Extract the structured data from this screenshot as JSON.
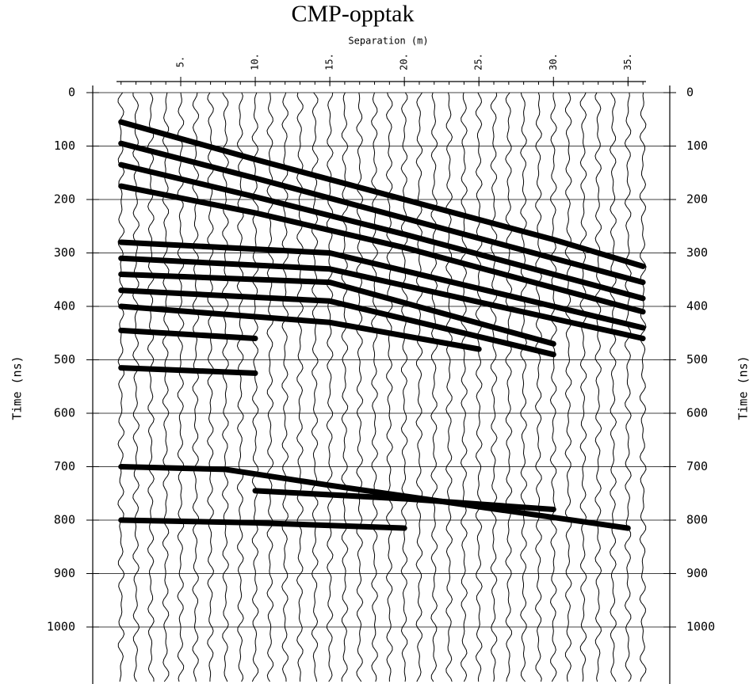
{
  "chart_data": {
    "type": "wiggle",
    "title": "CMP-opptak",
    "x_label": "Separation (m)",
    "y_label": "Time (ns)",
    "xlim": [
      -0.9,
      37.8
    ],
    "ylim": [
      0,
      1100
    ],
    "y_inverted": true,
    "grid": true,
    "xticks": [
      {
        "value": 5,
        "label": "5."
      },
      {
        "value": 10,
        "label": "10."
      },
      {
        "value": 15,
        "label": "15."
      },
      {
        "value": 20,
        "label": "20."
      },
      {
        "value": 25,
        "label": "25."
      },
      {
        "value": 30,
        "label": "30."
      },
      {
        "value": 35,
        "label": "35."
      }
    ],
    "yticks": [
      0,
      100,
      200,
      300,
      400,
      500,
      600,
      700,
      800,
      900,
      1000
    ],
    "traces": [
      1,
      2,
      3,
      4,
      5,
      6,
      7,
      8,
      9,
      10,
      11,
      12,
      13,
      14,
      15,
      16,
      17,
      18,
      19,
      20,
      21,
      22,
      23,
      24,
      25,
      26,
      27,
      28,
      29,
      30,
      31,
      32,
      33,
      34,
      35,
      36
    ],
    "trace_color": "#000000",
    "series": [
      {
        "color": "#000000",
        "x": [
          1,
          10,
          20,
          30,
          36
        ],
        "values": [
          55,
          125,
          200,
          275,
          325
        ]
      },
      {
        "color": "#000000",
        "x": [
          1,
          10,
          20,
          30,
          36
        ],
        "values": [
          95,
          160,
          235,
          310,
          355
        ]
      },
      {
        "color": "#000000",
        "x": [
          1,
          10,
          20,
          30,
          36
        ],
        "values": [
          135,
          195,
          265,
          340,
          385
        ]
      },
      {
        "color": "#000000",
        "x": [
          1,
          10,
          20,
          36
        ],
        "values": [
          175,
          225,
          290,
          410
        ]
      },
      {
        "color": "#000000",
        "x": [
          1,
          15,
          36
        ],
        "values": [
          280,
          300,
          440
        ]
      },
      {
        "color": "#000000",
        "x": [
          1,
          15,
          36
        ],
        "values": [
          310,
          330,
          460
        ]
      },
      {
        "color": "#000000",
        "x": [
          1,
          15,
          30
        ],
        "values": [
          340,
          355,
          470
        ]
      },
      {
        "color": "#000000",
        "x": [
          1,
          15,
          30
        ],
        "values": [
          370,
          390,
          490
        ]
      },
      {
        "color": "#000000",
        "x": [
          1,
          15,
          25
        ],
        "values": [
          400,
          430,
          480
        ]
      },
      {
        "color": "#000000",
        "x": [
          1,
          10
        ],
        "values": [
          445,
          460
        ]
      },
      {
        "color": "#000000",
        "x": [
          1,
          10
        ],
        "values": [
          515,
          525
        ]
      },
      {
        "color": "#000000",
        "x": [
          1,
          8,
          15,
          25,
          35
        ],
        "values": [
          700,
          705,
          735,
          775,
          815
        ]
      },
      {
        "color": "#000000",
        "x": [
          10,
          20,
          30
        ],
        "values": [
          745,
          760,
          780
        ]
      },
      {
        "color": "#000000",
        "x": [
          1,
          10,
          20
        ],
        "values": [
          800,
          805,
          815
        ]
      }
    ]
  }
}
